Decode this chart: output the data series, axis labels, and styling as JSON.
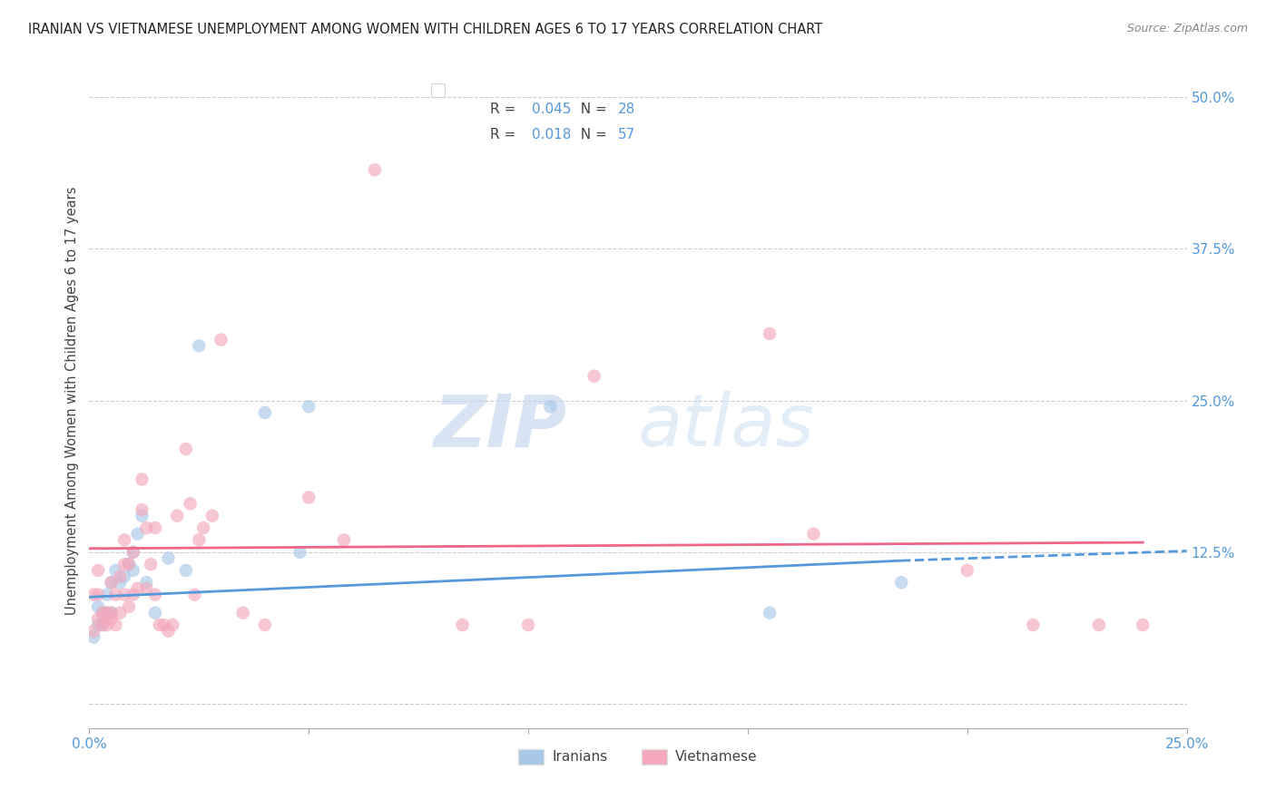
{
  "title": "IRANIAN VS VIETNAMESE UNEMPLOYMENT AMONG WOMEN WITH CHILDREN AGES 6 TO 17 YEARS CORRELATION CHART",
  "source": "Source: ZipAtlas.com",
  "ylabel": "Unemployment Among Women with Children Ages 6 to 17 years",
  "xlim": [
    0.0,
    0.25
  ],
  "ylim": [
    -0.02,
    0.52
  ],
  "xticks": [
    0.0,
    0.05,
    0.1,
    0.15,
    0.2,
    0.25
  ],
  "xticklabels": [
    "0.0%",
    "",
    "",
    "",
    "",
    "25.0%"
  ],
  "yticks": [
    0.0,
    0.125,
    0.25,
    0.375,
    0.5
  ],
  "yticklabels": [
    "",
    "12.5%",
    "25.0%",
    "37.5%",
    "50.0%"
  ],
  "background_color": "#ffffff",
  "grid_color": "#cccccc",
  "watermark_zip": "ZIP",
  "watermark_atlas": "atlas",
  "iranians_color": "#a8c8e8",
  "vietnamese_color": "#f4a8bc",
  "iranians_line_color": "#5599dd",
  "vietnamese_line_color": "#ee6688",
  "iranians_R": 0.045,
  "iranians_N": 28,
  "vietnamese_R": 0.018,
  "vietnamese_N": 57,
  "legend_label_iranians": "Iranians",
  "legend_label_vietnamese": "Vietnamese",
  "iranians_x": [
    0.001,
    0.002,
    0.002,
    0.003,
    0.003,
    0.004,
    0.004,
    0.005,
    0.005,
    0.006,
    0.007,
    0.008,
    0.009,
    0.01,
    0.01,
    0.011,
    0.012,
    0.013,
    0.015,
    0.018,
    0.022,
    0.025,
    0.04,
    0.048,
    0.05,
    0.105,
    0.155,
    0.185
  ],
  "iranians_y": [
    0.055,
    0.065,
    0.08,
    0.075,
    0.065,
    0.09,
    0.075,
    0.075,
    0.1,
    0.11,
    0.1,
    0.105,
    0.115,
    0.125,
    0.11,
    0.14,
    0.155,
    0.1,
    0.075,
    0.12,
    0.11,
    0.295,
    0.24,
    0.125,
    0.245,
    0.245,
    0.075,
    0.1
  ],
  "vietnamese_x": [
    0.001,
    0.001,
    0.002,
    0.002,
    0.002,
    0.003,
    0.003,
    0.004,
    0.004,
    0.005,
    0.005,
    0.005,
    0.006,
    0.006,
    0.007,
    0.007,
    0.008,
    0.008,
    0.008,
    0.009,
    0.009,
    0.01,
    0.01,
    0.011,
    0.012,
    0.012,
    0.013,
    0.013,
    0.014,
    0.015,
    0.015,
    0.016,
    0.017,
    0.018,
    0.019,
    0.02,
    0.022,
    0.023,
    0.024,
    0.025,
    0.026,
    0.028,
    0.03,
    0.035,
    0.04,
    0.05,
    0.058,
    0.065,
    0.085,
    0.1,
    0.115,
    0.155,
    0.165,
    0.2,
    0.215,
    0.23,
    0.24
  ],
  "vietnamese_y": [
    0.06,
    0.09,
    0.07,
    0.09,
    0.11,
    0.065,
    0.075,
    0.065,
    0.075,
    0.07,
    0.075,
    0.1,
    0.065,
    0.09,
    0.105,
    0.075,
    0.09,
    0.115,
    0.135,
    0.115,
    0.08,
    0.125,
    0.09,
    0.095,
    0.16,
    0.185,
    0.145,
    0.095,
    0.115,
    0.145,
    0.09,
    0.065,
    0.065,
    0.06,
    0.065,
    0.155,
    0.21,
    0.165,
    0.09,
    0.135,
    0.145,
    0.155,
    0.3,
    0.075,
    0.065,
    0.17,
    0.135,
    0.44,
    0.065,
    0.065,
    0.27,
    0.305,
    0.14,
    0.11,
    0.065,
    0.065,
    0.065
  ],
  "marker_size": 110,
  "marker_alpha": 0.65,
  "tick_color": "#5599dd",
  "right_axis_color": "#5599dd",
  "legend_R_color": "#5599dd",
  "legend_N_color": "#5599dd"
}
